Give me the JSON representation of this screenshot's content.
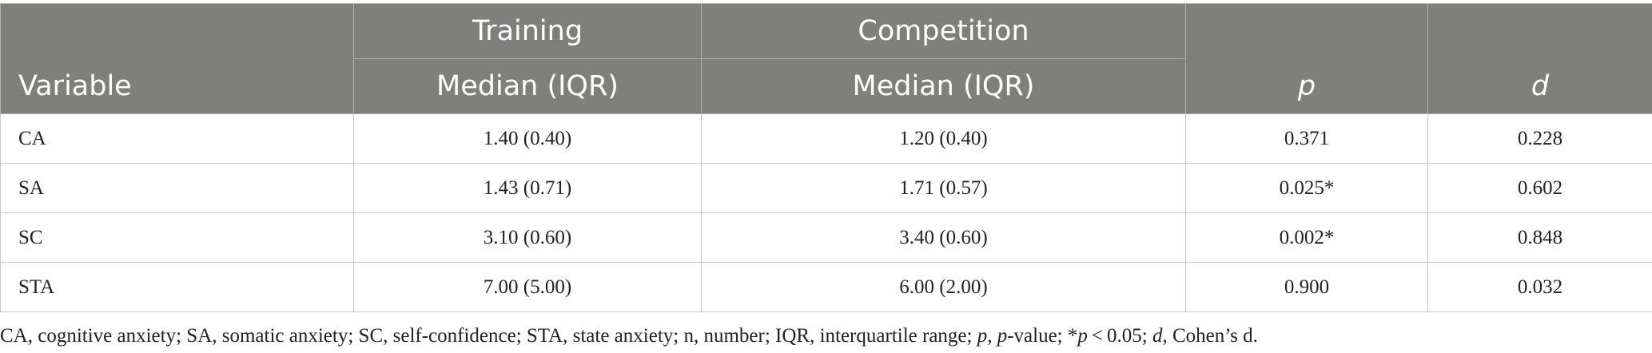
{
  "table": {
    "header": {
      "groups": [
        "Training",
        "Competition"
      ],
      "columns": [
        "Variable",
        "Median (IQR)",
        "Median (IQR)",
        "p",
        "d"
      ]
    },
    "rows": [
      [
        "CA",
        "1.40 (0.40)",
        "1.20 (0.40)",
        "0.371",
        "0.228"
      ],
      [
        "SA",
        "1.43 (0.71)",
        "1.71 (0.57)",
        "0.025*",
        "0.602"
      ],
      [
        "SC",
        "3.10 (0.60)",
        "3.40 (0.60)",
        "0.002*",
        "0.848"
      ],
      [
        "STA",
        "7.00 (5.00)",
        "6.00 (2.00)",
        "0.900",
        "0.032"
      ]
    ]
  },
  "footnote": [
    "CA, cognitive anxiety; SA, somatic anxiety; SC, self-confidence; STA, state anxiety; n, number; IQR, interquartile range; ",
    "p,",
    " ",
    "p",
    "-value; *",
    "p",
    " < 0.05; ",
    "d",
    ", Cohen’s d."
  ]
}
